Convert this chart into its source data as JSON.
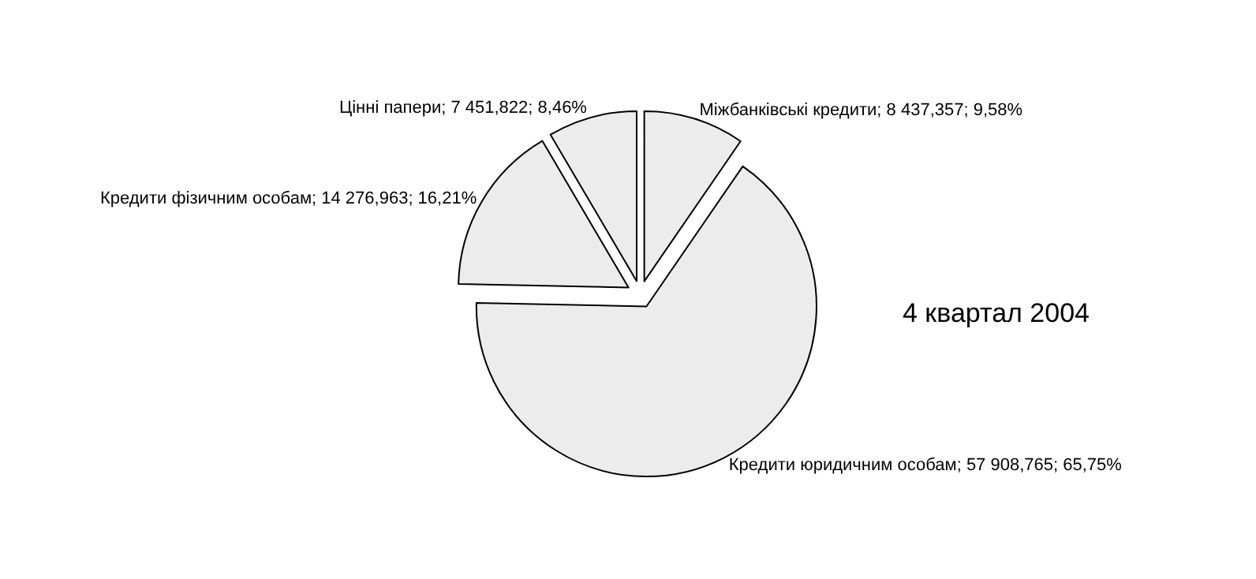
{
  "chart_data": {
    "type": "pie",
    "categories": [
      "Міжбанківські кредити",
      "Кредити юридичним особам",
      "Кредити фізичним особам",
      "Цінні папери"
    ],
    "values": [
      9.58,
      65.75,
      16.21,
      8.46
    ],
    "value_labels": [
      "8 437,357; 9,58%",
      "57 908,765; 65,75%",
      "14 276,963; 16,21%",
      "7 451,822; 8,46%"
    ],
    "colors": [
      "#ececec",
      "#ececec",
      "#ececec",
      "#ececec"
    ],
    "annotations": [
      "4 квартал 2004"
    ],
    "legend": false
  }
}
